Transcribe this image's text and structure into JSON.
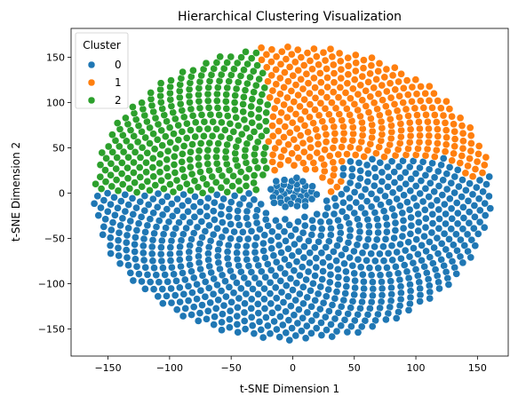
{
  "chart_data": {
    "type": "scatter",
    "title": "Hierarchical Clustering Visualization",
    "xlabel": "t-SNE Dimension 1",
    "ylabel": "t-SNE Dimension 2",
    "xlim": [
      -180,
      175
    ],
    "ylim": [
      -180,
      182
    ],
    "xticks": [
      -150,
      -100,
      -50,
      0,
      50,
      100,
      150
    ],
    "yticks": [
      -150,
      -100,
      -50,
      0,
      50,
      100,
      150
    ],
    "grid": false,
    "legend": {
      "title": "Cluster",
      "placement": "top-left",
      "entries": [
        {
          "label": "0",
          "color": "#1f77b4"
        },
        {
          "label": "1",
          "color": "#ff7f0e"
        },
        {
          "label": "2",
          "color": "#2ca02c"
        }
      ]
    },
    "series": [
      {
        "name": "0",
        "color": "#1f77b4"
      },
      {
        "name": "1",
        "color": "#ff7f0e"
      },
      {
        "name": "2",
        "color": "#2ca02c"
      }
    ],
    "point_cloud": {
      "shape": "phyllotaxis disk with central cluster-0 core",
      "outer_radius_x": 162,
      "outer_radius_y": 163,
      "inner_gap_radius": 28,
      "core_radius": 19,
      "approx_point_count": 1500
    }
  }
}
